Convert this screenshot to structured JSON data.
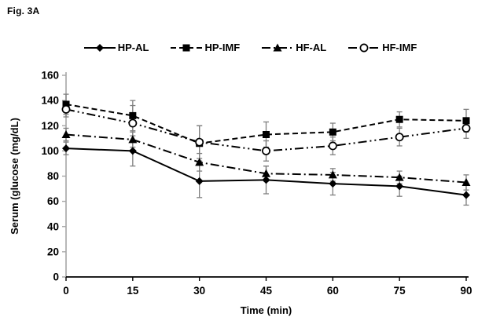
{
  "figure_label": "Fig. 3A",
  "colors": {
    "series": "#000000",
    "y_axis": "#a6a6a6",
    "x_axis": "#000000",
    "error_bar": "#7f7f7f",
    "background": "#ffffff"
  },
  "chart_data": {
    "type": "line",
    "title": "",
    "xlabel": "Time (min)",
    "ylabel": "Serum (glucose (mg/dL)",
    "x": [
      0,
      15,
      30,
      45,
      60,
      75,
      90
    ],
    "xlim": [
      0,
      90
    ],
    "ylim": [
      0,
      160
    ],
    "ytick_step": 20,
    "grid": false,
    "legend_position": "top-center",
    "error_bars": true,
    "series": [
      {
        "name": "HP-AL",
        "marker": "diamond-filled",
        "line_style": "solid",
        "values": [
          102,
          100,
          76,
          77,
          74,
          72,
          65
        ],
        "errors": [
          5,
          12,
          13,
          11,
          9,
          8,
          8
        ]
      },
      {
        "name": "HP-IMF",
        "marker": "square-filled",
        "line_style": "dashed",
        "values": [
          137,
          128,
          106,
          113,
          115,
          125,
          124
        ],
        "errors": [
          8,
          12,
          14,
          10,
          7,
          6,
          9
        ]
      },
      {
        "name": "HF-AL",
        "marker": "triangle-filled",
        "line_style": "dash-dot",
        "values": [
          113,
          109,
          91,
          82,
          81,
          79,
          75
        ],
        "errors": [
          5,
          6,
          7,
          6,
          5,
          5,
          6
        ]
      },
      {
        "name": "HF-IMF",
        "marker": "circle-open",
        "line_style": "dash-dot-dot",
        "values": [
          133,
          122,
          107,
          100,
          104,
          111,
          118
        ],
        "errors": [
          6,
          14,
          13,
          8,
          7,
          7,
          8
        ]
      }
    ]
  }
}
